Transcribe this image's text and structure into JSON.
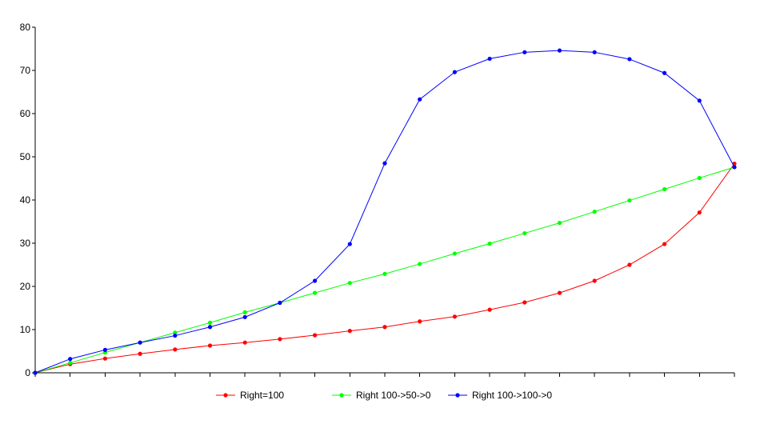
{
  "chart_data": {
    "type": "line",
    "ylim": [
      0,
      80
    ],
    "yticks": [
      0,
      10,
      20,
      30,
      40,
      50,
      60,
      70,
      80
    ],
    "x": [
      0,
      1,
      2,
      3,
      4,
      5,
      6,
      7,
      8,
      9,
      10,
      11,
      12,
      13,
      14,
      15,
      16,
      17,
      18,
      19,
      20
    ],
    "xlim": [
      0,
      20
    ],
    "grid": false,
    "legend_position": "bottom",
    "series": [
      {
        "name": "Right=100",
        "color": "#ff0000",
        "values": [
          0,
          2.0,
          3.3,
          4.4,
          5.4,
          6.3,
          7.0,
          7.8,
          8.7,
          9.7,
          10.6,
          11.9,
          13.0,
          14.6,
          16.3,
          18.5,
          21.3,
          25.0,
          29.8,
          37.1,
          48.4
        ]
      },
      {
        "name": "Right 100->50->0",
        "color": "#00ff00",
        "values": [
          0,
          2.3,
          4.7,
          7.0,
          9.3,
          11.6,
          14.0,
          16.2,
          18.5,
          20.8,
          22.9,
          25.2,
          27.6,
          29.9,
          32.3,
          34.7,
          37.3,
          39.9,
          42.5,
          45.1,
          47.6
        ]
      },
      {
        "name": "Right 100->100->0",
        "color": "#0000ff",
        "values": [
          0,
          3.2,
          5.3,
          7.0,
          8.6,
          10.6,
          12.9,
          16.2,
          21.3,
          29.8,
          48.5,
          63.3,
          69.6,
          72.7,
          74.2,
          74.6,
          74.2,
          72.6,
          69.4,
          63.0,
          47.6
        ]
      }
    ]
  }
}
